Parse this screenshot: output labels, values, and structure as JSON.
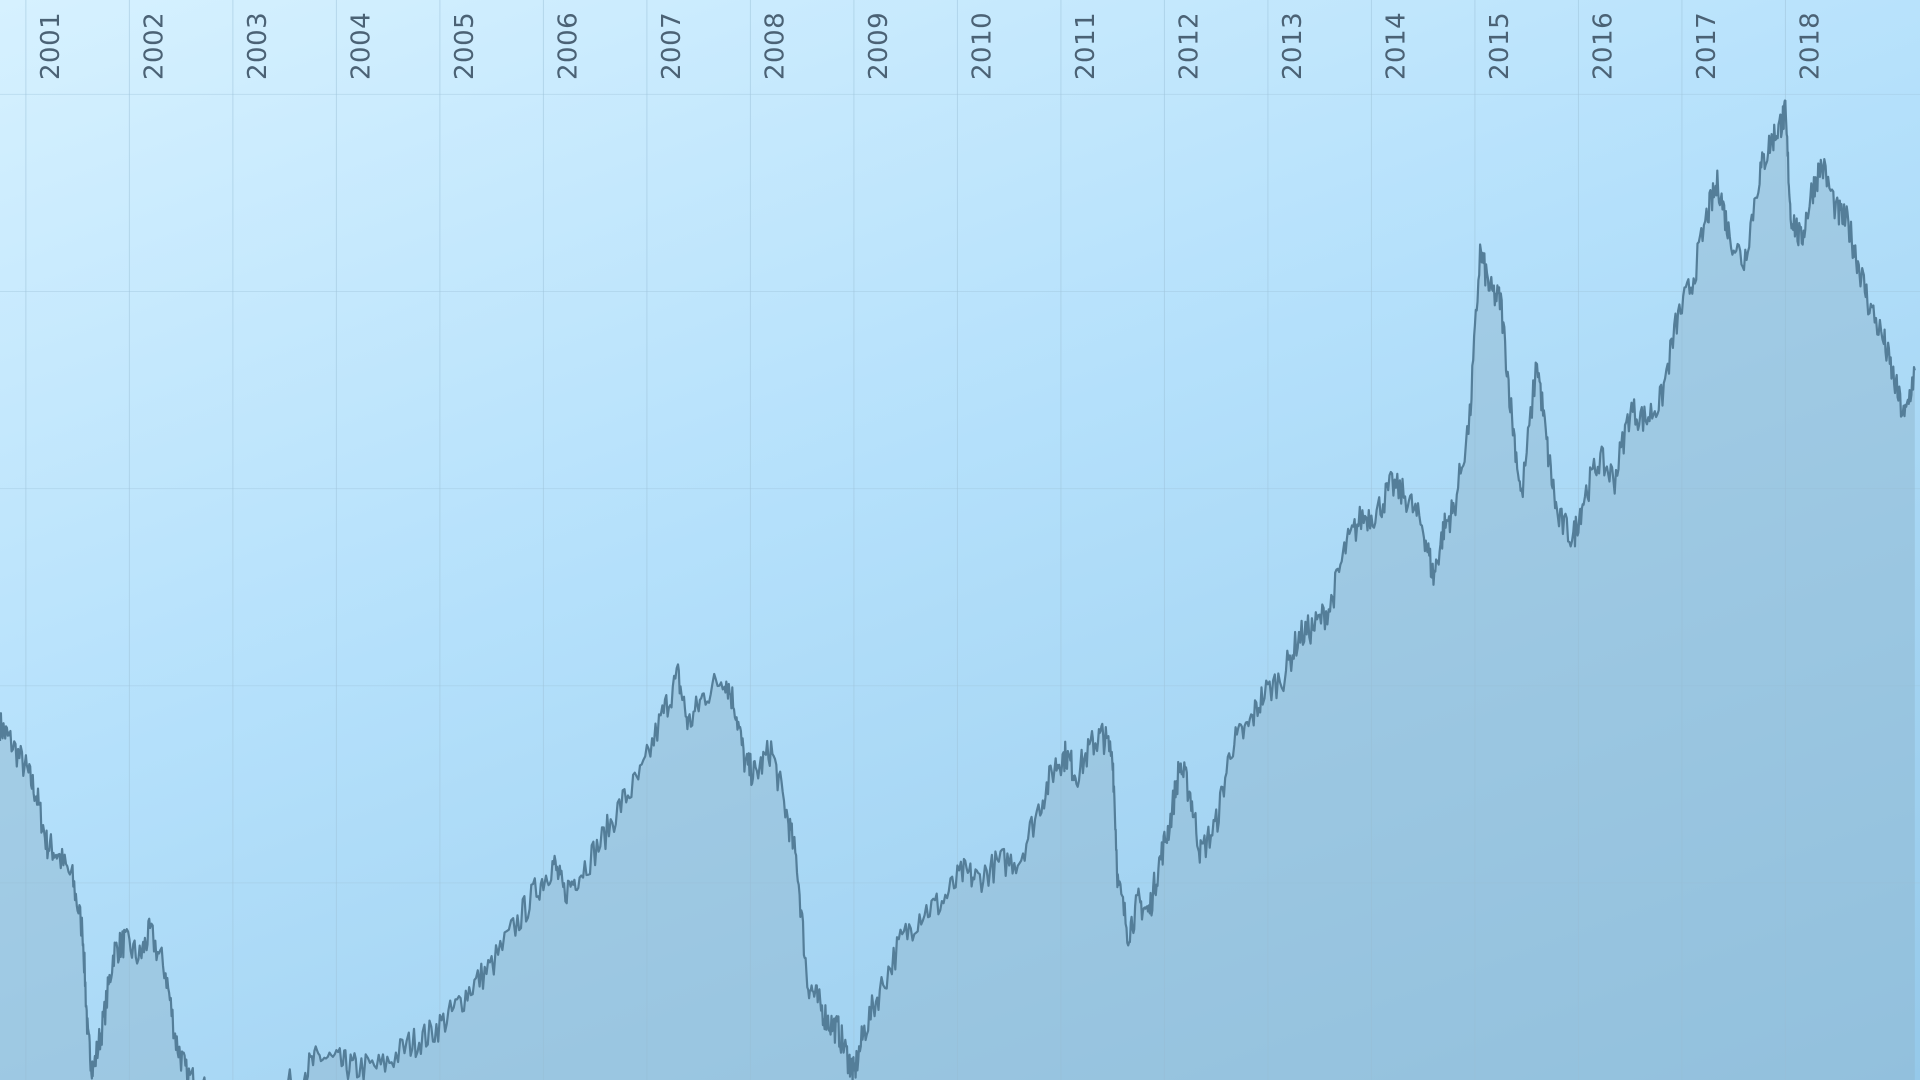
{
  "colors": {
    "line": "#547e99",
    "area": "#8fb8cf",
    "grid": "#9fc4db",
    "tick_text": "#4b6275",
    "background_top": "#d6f1ff",
    "background_bottom": "#95c9ea"
  },
  "chart_data": {
    "type": "area",
    "title": "",
    "xlabel": "",
    "ylabel": "",
    "x_axis_position": "top",
    "x_tick_labels": [
      "2001",
      "2002",
      "2003",
      "2004",
      "2005",
      "2006",
      "2007",
      "2008",
      "2009",
      "2010",
      "2011",
      "2012",
      "2013",
      "2014",
      "2015",
      "2016",
      "2017",
      "2018"
    ],
    "y_axis_labels_visible": false,
    "grid": true,
    "legend": "none",
    "xlim": [
      2000.75,
      2019.3
    ],
    "ylim": [
      0,
      52
    ],
    "series": [
      {
        "values": [
          [
            2000.75,
            18.0
          ],
          [
            2000.85,
            17.2
          ],
          [
            2001.0,
            15.8
          ],
          [
            2001.1,
            14.5
          ],
          [
            2001.2,
            12.0
          ],
          [
            2001.3,
            11.5
          ],
          [
            2001.45,
            10.2
          ],
          [
            2001.55,
            7.5
          ],
          [
            2001.6,
            2.0
          ],
          [
            2001.65,
            0.5
          ],
          [
            2001.75,
            3.0
          ],
          [
            2001.85,
            6.5
          ],
          [
            2001.95,
            7.0
          ],
          [
            2002.1,
            6.2
          ],
          [
            2002.2,
            7.5
          ],
          [
            2002.35,
            5.5
          ],
          [
            2002.45,
            2.0
          ],
          [
            2002.55,
            0.3
          ],
          [
            2002.7,
            -0.5
          ],
          [
            2003.0,
            -1.5
          ],
          [
            2003.4,
            -1.0
          ],
          [
            2003.7,
            0.5
          ],
          [
            2003.85,
            1.2
          ],
          [
            2004.05,
            0.8
          ],
          [
            2004.2,
            0.6
          ],
          [
            2004.45,
            0.7
          ],
          [
            2004.7,
            1.8
          ],
          [
            2004.9,
            2.3
          ],
          [
            2005.1,
            3.3
          ],
          [
            2005.3,
            4.7
          ],
          [
            2005.5,
            5.8
          ],
          [
            2005.75,
            8.0
          ],
          [
            2005.95,
            9.8
          ],
          [
            2006.1,
            11.0
          ],
          [
            2006.2,
            9.5
          ],
          [
            2006.35,
            10.5
          ],
          [
            2006.55,
            12.0
          ],
          [
            2006.75,
            14.0
          ],
          [
            2006.95,
            15.5
          ],
          [
            2007.15,
            18.5
          ],
          [
            2007.3,
            20.5
          ],
          [
            2007.4,
            18.0
          ],
          [
            2007.55,
            19.5
          ],
          [
            2007.75,
            20.5
          ],
          [
            2007.85,
            19.0
          ],
          [
            2007.95,
            16.0
          ],
          [
            2008.05,
            15.5
          ],
          [
            2008.2,
            16.8
          ],
          [
            2008.35,
            13.5
          ],
          [
            2008.45,
            11.0
          ],
          [
            2008.55,
            5.0
          ],
          [
            2008.65,
            4.0
          ],
          [
            2008.75,
            3.0
          ],
          [
            2008.85,
            2.5
          ],
          [
            2008.95,
            1.0
          ],
          [
            2009.0,
            0.3
          ],
          [
            2009.1,
            2.5
          ],
          [
            2009.25,
            4.5
          ],
          [
            2009.45,
            7.0
          ],
          [
            2009.65,
            8.5
          ],
          [
            2009.85,
            9.0
          ],
          [
            2010.05,
            10.5
          ],
          [
            2010.2,
            10.2
          ],
          [
            2010.4,
            11.0
          ],
          [
            2010.6,
            11.2
          ],
          [
            2010.8,
            14.0
          ],
          [
            2010.95,
            16.0
          ],
          [
            2011.05,
            16.5
          ],
          [
            2011.15,
            15.5
          ],
          [
            2011.3,
            17.0
          ],
          [
            2011.4,
            17.5
          ],
          [
            2011.5,
            16.5
          ],
          [
            2011.55,
            10.0
          ],
          [
            2011.65,
            7.5
          ],
          [
            2011.75,
            9.0
          ],
          [
            2011.85,
            8.5
          ],
          [
            2011.95,
            11.0
          ],
          [
            2012.05,
            13.0
          ],
          [
            2012.15,
            16.0
          ],
          [
            2012.25,
            14.5
          ],
          [
            2012.35,
            11.5
          ],
          [
            2012.5,
            13.0
          ],
          [
            2012.65,
            17.0
          ],
          [
            2012.8,
            17.8
          ],
          [
            2012.95,
            19.5
          ],
          [
            2013.15,
            20.5
          ],
          [
            2013.3,
            22.5
          ],
          [
            2013.45,
            23.0
          ],
          [
            2013.6,
            24.0
          ],
          [
            2013.75,
            27.0
          ],
          [
            2013.9,
            28.5
          ],
          [
            2014.05,
            28.8
          ],
          [
            2014.2,
            30.2
          ],
          [
            2014.35,
            29.5
          ],
          [
            2014.5,
            28.0
          ],
          [
            2014.6,
            25.5
          ],
          [
            2014.7,
            28.0
          ],
          [
            2014.8,
            29.0
          ],
          [
            2014.95,
            33.5
          ],
          [
            2015.05,
            42.0
          ],
          [
            2015.15,
            40.0
          ],
          [
            2015.25,
            39.5
          ],
          [
            2015.35,
            34.0
          ],
          [
            2015.45,
            29.5
          ],
          [
            2015.6,
            36.5
          ],
          [
            2015.7,
            32.0
          ],
          [
            2015.8,
            28.5
          ],
          [
            2015.95,
            27.5
          ],
          [
            2016.05,
            29.5
          ],
          [
            2016.2,
            31.5
          ],
          [
            2016.35,
            30.5
          ],
          [
            2016.5,
            34.0
          ],
          [
            2016.65,
            33.5
          ],
          [
            2016.8,
            34.5
          ],
          [
            2016.95,
            38.5
          ],
          [
            2017.1,
            40.5
          ],
          [
            2017.25,
            44.0
          ],
          [
            2017.35,
            45.5
          ],
          [
            2017.45,
            43.0
          ],
          [
            2017.6,
            41.5
          ],
          [
            2017.75,
            46.0
          ],
          [
            2017.85,
            47.5
          ],
          [
            2017.95,
            48.5
          ],
          [
            2018.0,
            49.0
          ],
          [
            2018.05,
            44.0
          ],
          [
            2018.15,
            42.5
          ],
          [
            2018.25,
            45.0
          ],
          [
            2018.35,
            46.5
          ],
          [
            2018.5,
            44.0
          ],
          [
            2018.6,
            43.5
          ],
          [
            2018.7,
            41.5
          ],
          [
            2018.8,
            39.5
          ],
          [
            2018.95,
            37.5
          ],
          [
            2019.05,
            35.5
          ],
          [
            2019.15,
            33.5
          ],
          [
            2019.25,
            36.0
          ]
        ]
      }
    ]
  }
}
